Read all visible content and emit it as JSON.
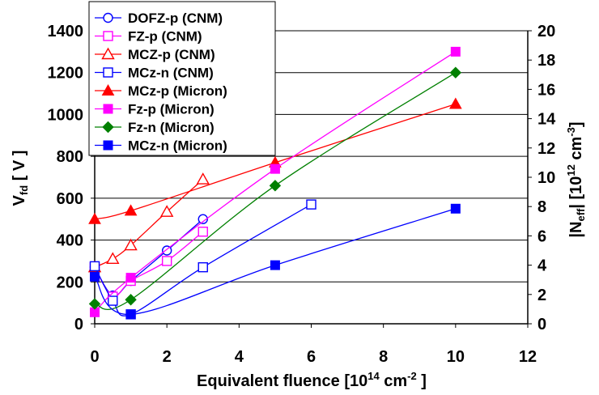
{
  "chart_data": {
    "type": "line",
    "xlabel": "Equivalent fluence [10",
    "xlabel_sup": "14",
    "xlabel_unit": " cm",
    "xlabel_unit_sup": "-2",
    "xlabel_end": " ]",
    "ylabel_main": "V",
    "ylabel_sub": "fd",
    "ylabel_end": " [ V ]",
    "y2label": {
      "a": "|N",
      "b": "eff",
      "c": "| [10",
      "d": "12",
      "e": " cm",
      "f": "-3",
      "g": "]"
    },
    "xlim": [
      0,
      12
    ],
    "ylim": [
      0,
      1400
    ],
    "y2lim": [
      0,
      20
    ],
    "xticks": [
      "0",
      "2",
      "4",
      "6",
      "8",
      "10",
      "12"
    ],
    "yticks": [
      "0",
      "200",
      "400",
      "600",
      "800",
      "1000",
      "1200",
      "1400"
    ],
    "y2ticks": [
      "0",
      "2",
      "4",
      "6",
      "8",
      "10",
      "12",
      "14",
      "16",
      "18",
      "20"
    ],
    "grid": "horizontal",
    "legend": "top-left",
    "series": [
      {
        "name": "DOFZ-p (CNM)",
        "color": "#0000ff",
        "marker": "circle",
        "filled": false,
        "points": [
          [
            0,
            270
          ],
          [
            0.5,
            135
          ],
          [
            1,
            205
          ],
          [
            2,
            350
          ],
          [
            3,
            500
          ]
        ]
      },
      {
        "name": "FZ-p (CNM)",
        "color": "#ff00ff",
        "marker": "square",
        "filled": false,
        "points": [
          [
            0,
            270
          ],
          [
            0.5,
            130
          ],
          [
            1,
            205
          ],
          [
            2,
            300
          ],
          [
            3,
            440
          ]
        ]
      },
      {
        "name": "MCZ-p (CNM)",
        "color": "#ff0000",
        "marker": "triangle",
        "filled": false,
        "points": [
          [
            0,
            270
          ],
          [
            0.5,
            310
          ],
          [
            1,
            375
          ],
          [
            2,
            535
          ],
          [
            3,
            690
          ]
        ]
      },
      {
        "name": "MCz-n (CNM)",
        "color": "#0000ff",
        "marker": "square",
        "filled": false,
        "points": [
          [
            0,
            275
          ],
          [
            0.5,
            110
          ],
          [
            1,
            45
          ],
          [
            3,
            270
          ],
          [
            6,
            570
          ]
        ]
      },
      {
        "name": "MCz-p (Micron)",
        "color": "#ff0000",
        "marker": "triangle",
        "filled": true,
        "points": [
          [
            0,
            500
          ],
          [
            1,
            540
          ],
          [
            5,
            770
          ],
          [
            10,
            1050
          ]
        ]
      },
      {
        "name": "Fz-p (Micron)",
        "color": "#ff00ff",
        "marker": "square",
        "filled": true,
        "points": [
          [
            0,
            55
          ],
          [
            1,
            220
          ],
          [
            5,
            740
          ],
          [
            10,
            1300
          ]
        ]
      },
      {
        "name": "Fz-n (Micron)",
        "color": "#008000",
        "marker": "diamond",
        "filled": true,
        "points": [
          [
            0,
            95
          ],
          [
            1,
            115
          ],
          [
            5,
            660
          ],
          [
            10,
            1200
          ]
        ]
      },
      {
        "name": "MCz-n (Micron)",
        "color": "#0000ff",
        "marker": "square",
        "filled": true,
        "points": [
          [
            0,
            225
          ],
          [
            1,
            45
          ],
          [
            5,
            280
          ],
          [
            10,
            550
          ]
        ]
      }
    ]
  }
}
